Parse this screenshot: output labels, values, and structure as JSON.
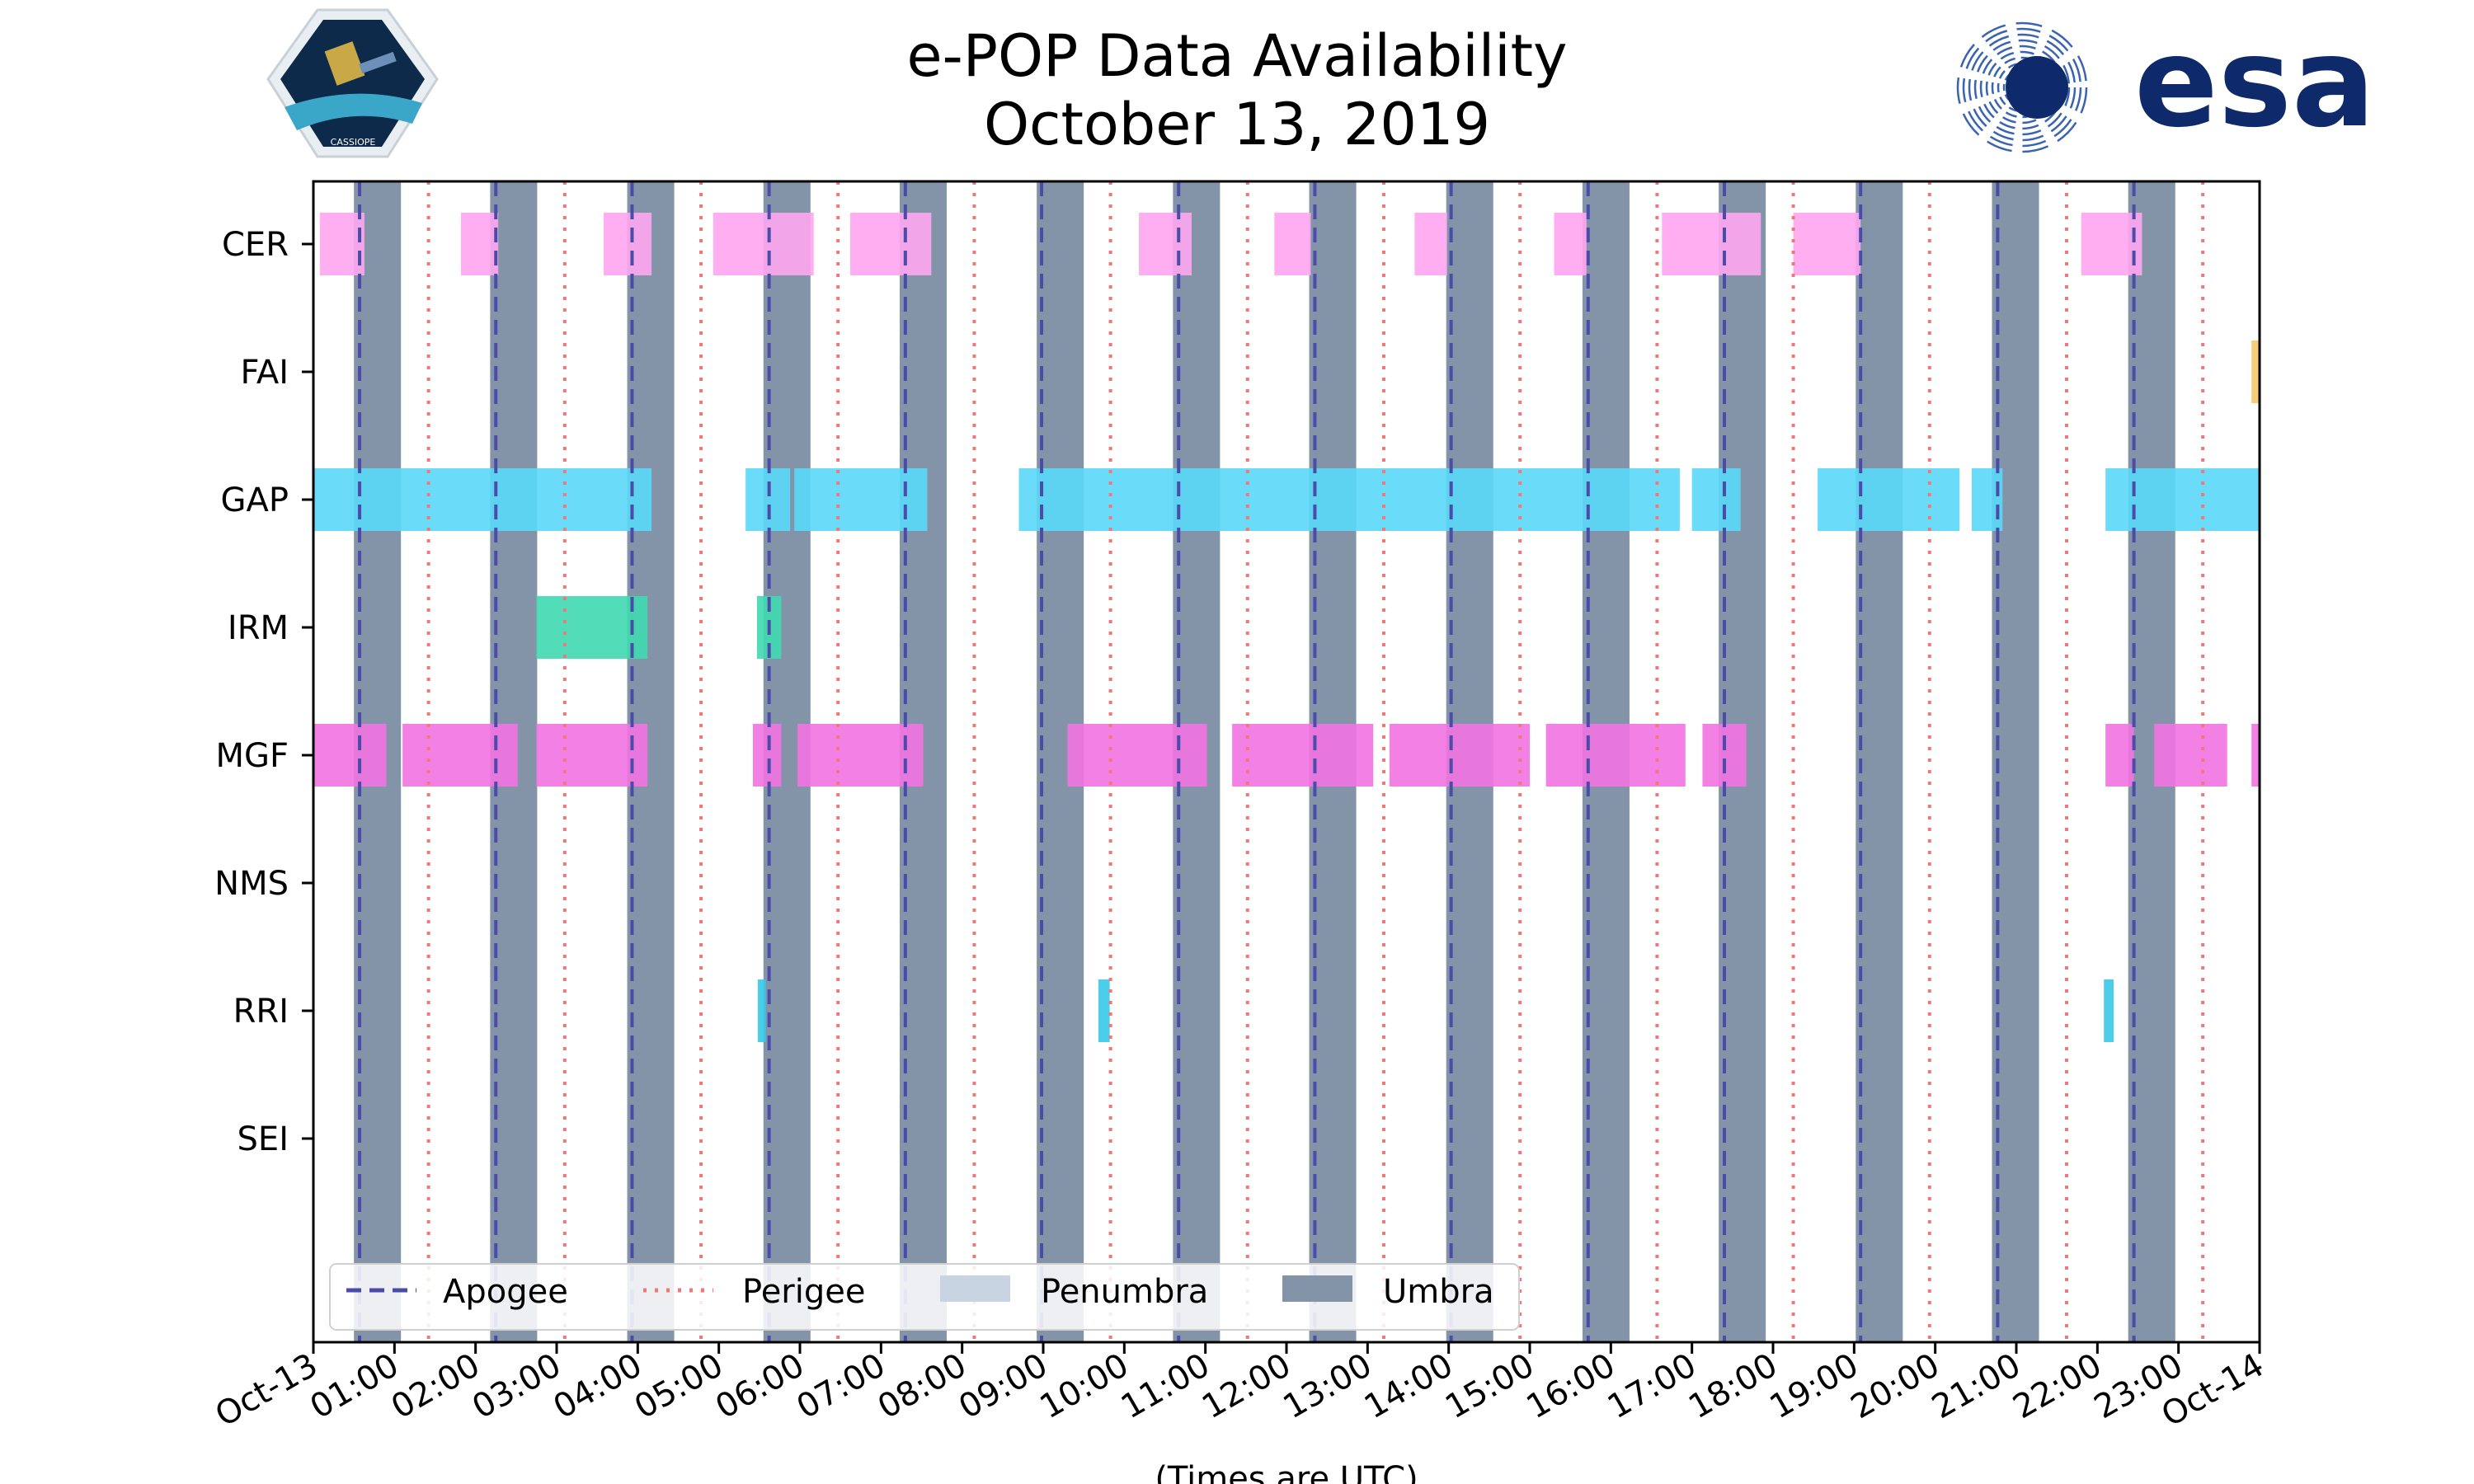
{
  "header": {
    "title_line1": "e-POP Data Availability",
    "title_line2": "October 13, 2019",
    "left_logo_text": "CASSIOPE",
    "right_logo_text": "esa"
  },
  "colors": {
    "umbra": "#8494a8",
    "penumbra": "#c8d4e2",
    "apogee": "#4b4ba8",
    "perigee": "#f07878",
    "CER": "#ffa6f0",
    "FAI": "#f5c96a",
    "GAP": "#5ad8f8",
    "IRM": "#3fd9b0",
    "MGF": "#f272e2",
    "NMS": "#999999",
    "RRI": "#38c8e8",
    "SEI": "#999999"
  },
  "chart_data": {
    "type": "timeline",
    "title": "e-POP Data Availability October 13, 2019",
    "xlabel": "(Times are UTC)",
    "xlim_hours": [
      0,
      24
    ],
    "x_tick_labels": [
      "Oct-13",
      "01:00",
      "02:00",
      "03:00",
      "04:00",
      "05:00",
      "06:00",
      "07:00",
      "08:00",
      "09:00",
      "10:00",
      "11:00",
      "12:00",
      "13:00",
      "14:00",
      "15:00",
      "16:00",
      "17:00",
      "18:00",
      "19:00",
      "20:00",
      "21:00",
      "22:00",
      "23:00",
      "Oct-14"
    ],
    "instruments": [
      "CER",
      "FAI",
      "GAP",
      "IRM",
      "MGF",
      "NMS",
      "RRI",
      "SEI"
    ],
    "legend": {
      "placement": "lower-left",
      "entries": [
        "Apogee",
        "Perigee",
        "Penumbra",
        "Umbra"
      ]
    },
    "apogee_hours": [
      0.57,
      2.25,
      3.93,
      5.62,
      7.3,
      8.98,
      10.67,
      12.35,
      14.03,
      15.72,
      17.4,
      19.08,
      20.77,
      22.45
    ],
    "perigee_hours": [
      1.42,
      3.1,
      4.78,
      6.47,
      8.15,
      9.83,
      11.52,
      13.2,
      14.88,
      16.57,
      18.25,
      19.93,
      21.62,
      23.3
    ],
    "umbra_intervals": [
      [
        0.5,
        1.08
      ],
      [
        2.18,
        2.76
      ],
      [
        3.87,
        4.45
      ],
      [
        5.55,
        6.13
      ],
      [
        7.23,
        7.81
      ],
      [
        8.92,
        9.5
      ],
      [
        10.6,
        11.18
      ],
      [
        12.28,
        12.86
      ],
      [
        13.97,
        14.55
      ],
      [
        15.65,
        16.23
      ],
      [
        17.33,
        17.91
      ],
      [
        19.02,
        19.6
      ],
      [
        20.7,
        21.28
      ],
      [
        22.38,
        22.96
      ]
    ],
    "data_segments": {
      "CER": [
        [
          0.08,
          0.63
        ],
        [
          1.82,
          2.28
        ],
        [
          3.58,
          4.17
        ],
        [
          4.93,
          6.17
        ],
        [
          6.62,
          7.62
        ],
        [
          10.18,
          10.83
        ],
        [
          11.85,
          12.3
        ],
        [
          13.58,
          13.98
        ],
        [
          15.3,
          15.7
        ],
        [
          16.63,
          17.85
        ],
        [
          18.25,
          19.08
        ],
        [
          21.8,
          22.55
        ]
      ],
      "FAI": [
        [
          23.9,
          24.0
        ]
      ],
      "GAP": [
        [
          0.0,
          4.17
        ],
        [
          5.33,
          5.88
        ],
        [
          5.93,
          7.57
        ],
        [
          8.7,
          16.85
        ],
        [
          17.0,
          17.6
        ],
        [
          18.55,
          20.3
        ],
        [
          20.45,
          20.83
        ],
        [
          22.1,
          24.0
        ]
      ],
      "IRM": [
        [
          2.75,
          4.12
        ],
        [
          5.47,
          5.77
        ]
      ],
      "MGF": [
        [
          0.0,
          0.9
        ],
        [
          1.1,
          2.52
        ],
        [
          2.75,
          4.12
        ],
        [
          5.42,
          5.77
        ],
        [
          5.97,
          7.52
        ],
        [
          9.3,
          11.02
        ],
        [
          11.33,
          13.07
        ],
        [
          13.27,
          15.0
        ],
        [
          15.2,
          16.92
        ],
        [
          17.13,
          17.67
        ],
        [
          22.1,
          22.45
        ],
        [
          22.7,
          23.6
        ],
        [
          23.9,
          24.0
        ]
      ],
      "NMS": [],
      "RRI": [
        [
          5.48,
          5.58
        ],
        [
          9.68,
          9.82
        ],
        [
          22.08,
          22.2
        ]
      ],
      "SEI": []
    }
  }
}
